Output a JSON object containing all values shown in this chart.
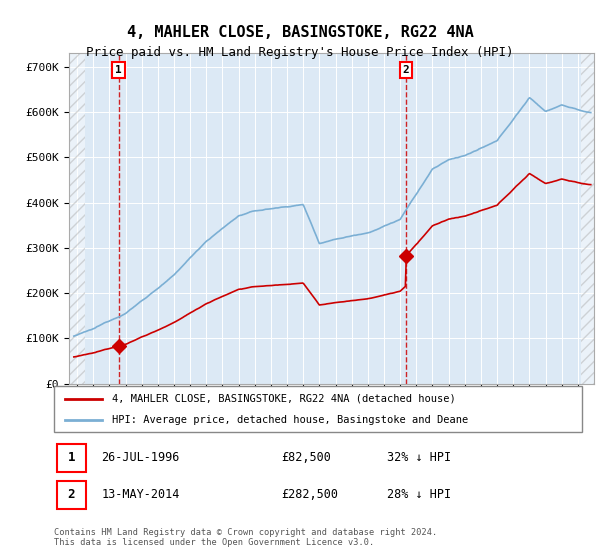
{
  "title": "4, MAHLER CLOSE, BASINGSTOKE, RG22 4NA",
  "subtitle": "Price paid vs. HM Land Registry's House Price Index (HPI)",
  "ylim": [
    0,
    730000
  ],
  "yticks": [
    0,
    100000,
    200000,
    300000,
    400000,
    500000,
    600000,
    700000
  ],
  "ytick_labels": [
    "£0",
    "£100K",
    "£200K",
    "£300K",
    "£400K",
    "£500K",
    "£600K",
    "£700K"
  ],
  "plot_bg_color": "#dce9f5",
  "hpi_color": "#7bafd4",
  "price_color": "#cc0000",
  "sale1_year": 1996.57,
  "sale1_price": 82500,
  "sale2_year": 2014.37,
  "sale2_price": 282500,
  "legend_line1": "4, MAHLER CLOSE, BASINGSTOKE, RG22 4NA (detached house)",
  "legend_line2": "HPI: Average price, detached house, Basingstoke and Deane",
  "ann1_date": "26-JUL-1996",
  "ann1_price": "£82,500",
  "ann1_note": "32% ↓ HPI",
  "ann2_date": "13-MAY-2014",
  "ann2_price": "£282,500",
  "ann2_note": "28% ↓ HPI",
  "footer": "Contains HM Land Registry data © Crown copyright and database right 2024.\nThis data is licensed under the Open Government Licence v3.0.",
  "title_fontsize": 11,
  "subtitle_fontsize": 9
}
